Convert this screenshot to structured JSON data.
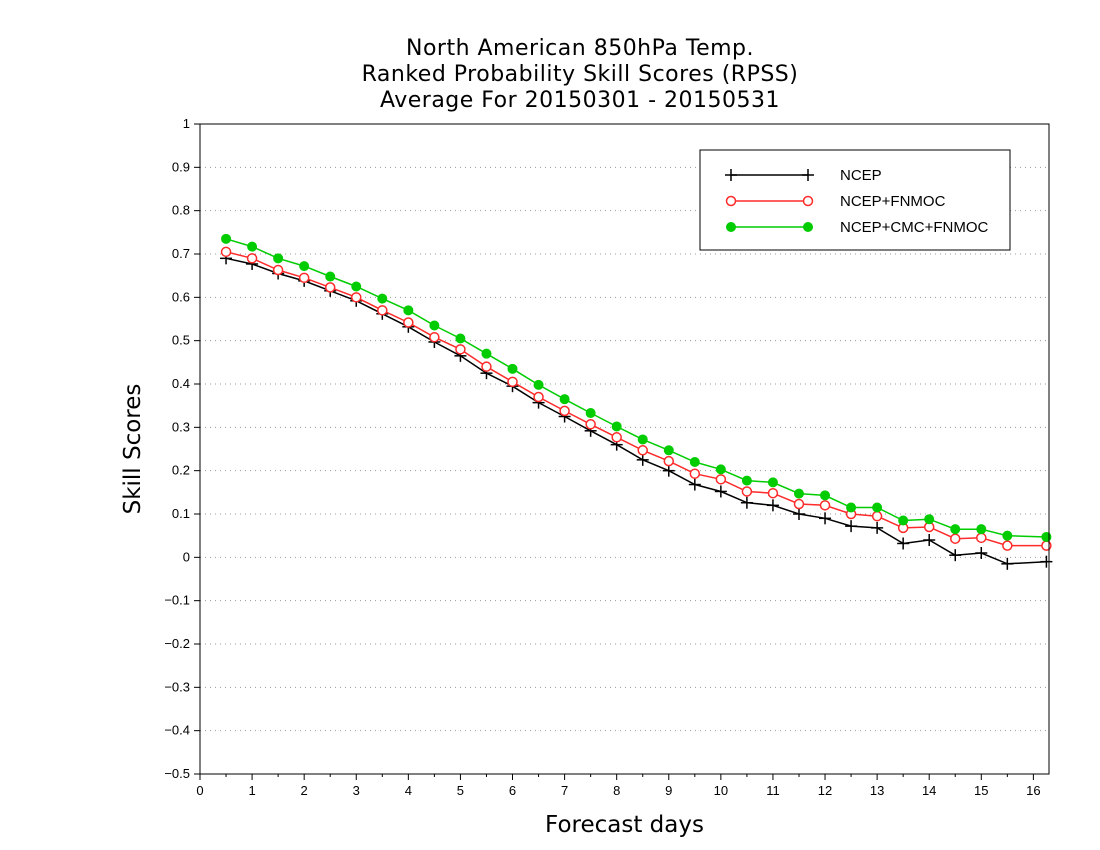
{
  "chart_data": {
    "type": "line",
    "title_lines": [
      "North American 850hPa Temp.",
      "Ranked Probability Skill Scores (RPSS)",
      "Average For 20150301 - 20150531"
    ],
    "xlabel": "Forecast days",
    "ylabel": "Skill Scores",
    "xlim": [
      0,
      16.3
    ],
    "ylim": [
      -0.5,
      1
    ],
    "x_ticks": [
      "0",
      "1",
      "2",
      "3",
      "4",
      "5",
      "6",
      "7",
      "8",
      "9",
      "10",
      "11",
      "12",
      "13",
      "14",
      "15",
      "16"
    ],
    "y_ticks": [
      "1",
      "0.9",
      "0.8",
      "0.7",
      "0.6",
      "0.5",
      "0.4",
      "0.3",
      "0.2",
      "0.1",
      "0",
      "−0.1",
      "−0.2",
      "−0.3",
      "−0.4",
      "−0.5"
    ],
    "grid": "horizontal-dotted",
    "legend_position": "top-right",
    "x": [
      0.5,
      1,
      1.5,
      2,
      2.5,
      3,
      3.5,
      4,
      4.5,
      5,
      5.5,
      6,
      6.5,
      7,
      7.5,
      8,
      8.5,
      9,
      9.5,
      10,
      10.5,
      11,
      11.5,
      12,
      12.5,
      13,
      13.5,
      14,
      14.5,
      15,
      15.5,
      16.25
    ],
    "series": [
      {
        "name": "NCEP",
        "color": "#000000",
        "marker": "plus",
        "values": [
          0.69,
          0.677,
          0.655,
          0.638,
          0.615,
          0.592,
          0.562,
          0.532,
          0.497,
          0.465,
          0.425,
          0.395,
          0.357,
          0.325,
          0.292,
          0.26,
          0.225,
          0.2,
          0.168,
          0.152,
          0.126,
          0.12,
          0.1,
          0.09,
          0.072,
          0.068,
          0.032,
          0.04,
          0.005,
          0.01,
          -0.015,
          -0.01
        ]
      },
      {
        "name": "NCEP+FNMOC",
        "color": "#ff2a2a",
        "marker": "open-circle",
        "values": [
          0.705,
          0.69,
          0.663,
          0.645,
          0.623,
          0.6,
          0.57,
          0.542,
          0.508,
          0.48,
          0.44,
          0.405,
          0.37,
          0.338,
          0.307,
          0.277,
          0.247,
          0.222,
          0.193,
          0.18,
          0.152,
          0.148,
          0.123,
          0.12,
          0.1,
          0.095,
          0.068,
          0.07,
          0.043,
          0.045,
          0.027,
          0.027
        ]
      },
      {
        "name": "NCEP+CMC+FNMOC",
        "color": "#00cc00",
        "marker": "filled-circle",
        "values": [
          0.735,
          0.717,
          0.69,
          0.672,
          0.648,
          0.625,
          0.597,
          0.57,
          0.535,
          0.505,
          0.47,
          0.435,
          0.398,
          0.365,
          0.333,
          0.302,
          0.272,
          0.247,
          0.22,
          0.203,
          0.177,
          0.173,
          0.147,
          0.143,
          0.115,
          0.115,
          0.085,
          0.088,
          0.065,
          0.065,
          0.05,
          0.047
        ]
      }
    ]
  }
}
